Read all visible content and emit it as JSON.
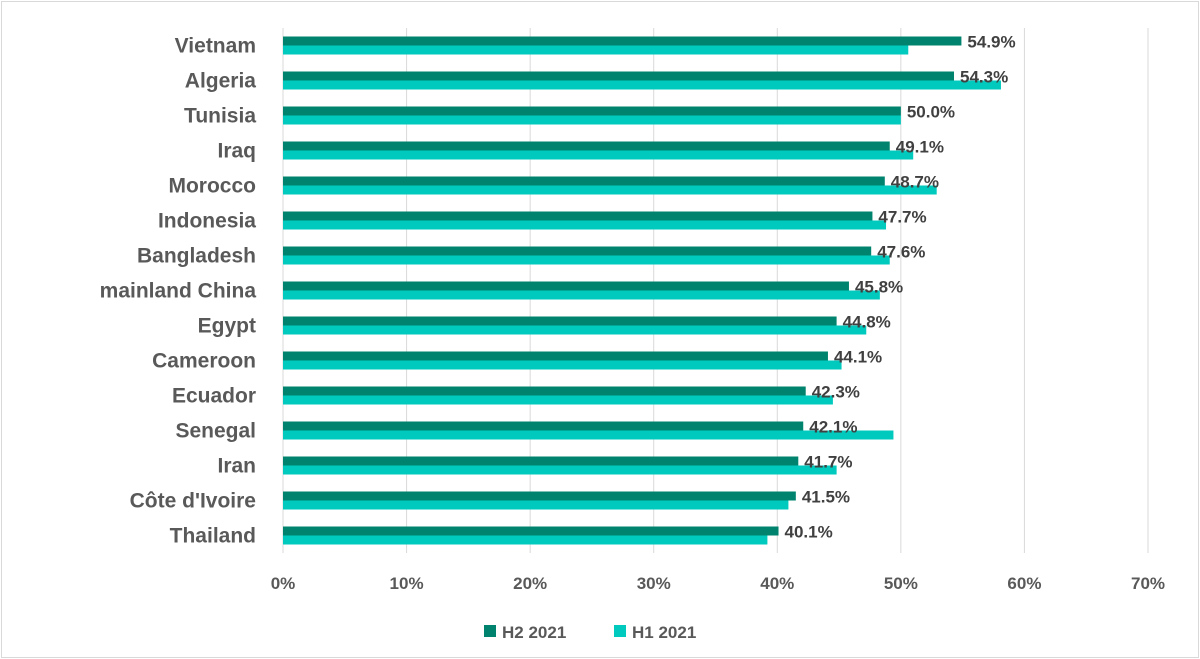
{
  "chart_data": {
    "type": "bar",
    "orientation": "horizontal",
    "title": "",
    "xlabel": "",
    "ylabel": "",
    "categories": [
      "Vietnam",
      "Algeria",
      "Tunisia",
      "Iraq",
      "Morocco",
      "Indonesia",
      "Bangladesh",
      "mainland China",
      "Egypt",
      "Cameroon",
      "Ecuador",
      "Senegal",
      "Iran",
      "Côte d'Ivoire",
      "Thailand"
    ],
    "series": [
      {
        "name": "H2 2021",
        "color": "#00836E",
        "values": [
          54.9,
          54.3,
          50.0,
          49.1,
          48.7,
          47.7,
          47.6,
          45.8,
          44.8,
          44.1,
          42.3,
          42.1,
          41.7,
          41.5,
          40.1
        ],
        "labels": [
          "54.9%",
          "54.3%",
          "50.0%",
          "49.1%",
          "48.7%",
          "47.7%",
          "47.6%",
          "45.8%",
          "44.8%",
          "44.1%",
          "42.3%",
          "42.1%",
          "41.7%",
          "41.5%",
          "40.1%"
        ]
      },
      {
        "name": "H1 2021",
        "color": "#00C9BE",
        "values": [
          50.6,
          58.1,
          50.0,
          51.0,
          52.9,
          48.8,
          49.1,
          48.3,
          47.2,
          45.2,
          44.5,
          49.4,
          44.8,
          40.9,
          39.2
        ]
      }
    ],
    "xlim": [
      0,
      70
    ],
    "xticks": [
      "0%",
      "10%",
      "20%",
      "30%",
      "40%",
      "50%",
      "60%",
      "70%"
    ],
    "grid": true,
    "legend_position": "bottom"
  }
}
